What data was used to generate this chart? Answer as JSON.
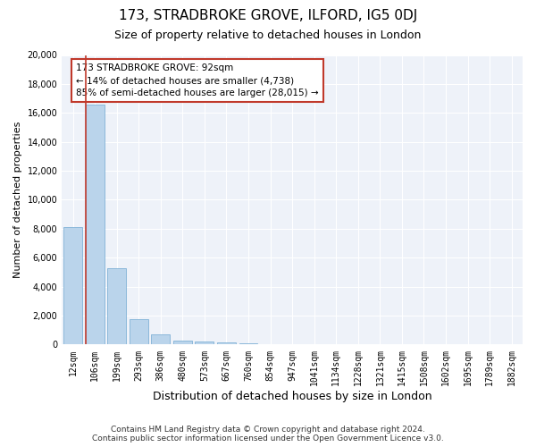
{
  "title": "173, STRADBROKE GROVE, ILFORD, IG5 0DJ",
  "subtitle": "Size of property relative to detached houses in London",
  "xlabel": "Distribution of detached houses by size in London",
  "ylabel": "Number of detached properties",
  "bar_color": "#bad4eb",
  "bar_edge_color": "#6fa8d0",
  "highlight_color": "#c0392b",
  "background_color": "#eef2f9",
  "grid_color": "#ffffff",
  "categories": [
    "12sqm",
    "106sqm",
    "199sqm",
    "293sqm",
    "386sqm",
    "480sqm",
    "573sqm",
    "667sqm",
    "760sqm",
    "854sqm",
    "947sqm",
    "1041sqm",
    "1134sqm",
    "1228sqm",
    "1321sqm",
    "1415sqm",
    "1508sqm",
    "1602sqm",
    "1695sqm",
    "1789sqm",
    "1882sqm"
  ],
  "values": [
    8100,
    16600,
    5300,
    1750,
    700,
    300,
    200,
    150,
    100,
    50,
    20,
    8,
    4,
    2,
    1,
    0,
    0,
    0,
    0,
    0,
    0
  ],
  "ylim": [
    0,
    20000
  ],
  "yticks": [
    0,
    2000,
    4000,
    6000,
    8000,
    10000,
    12000,
    14000,
    16000,
    18000,
    20000
  ],
  "highlight_bar_index": 1,
  "annotation_text_line1": "173 STRADBROKE GROVE: 92sqm",
  "annotation_text_line2": "← 14% of detached houses are smaller (4,738)",
  "annotation_text_line3": "85% of semi-detached houses are larger (28,015) →",
  "vline_bar_index": 1,
  "footer_line1": "Contains HM Land Registry data © Crown copyright and database right 2024.",
  "footer_line2": "Contains public sector information licensed under the Open Government Licence v3.0.",
  "title_fontsize": 11,
  "subtitle_fontsize": 9,
  "tick_fontsize": 7,
  "ylabel_fontsize": 8,
  "xlabel_fontsize": 9,
  "annotation_fontsize": 7.5,
  "footer_fontsize": 6.5
}
